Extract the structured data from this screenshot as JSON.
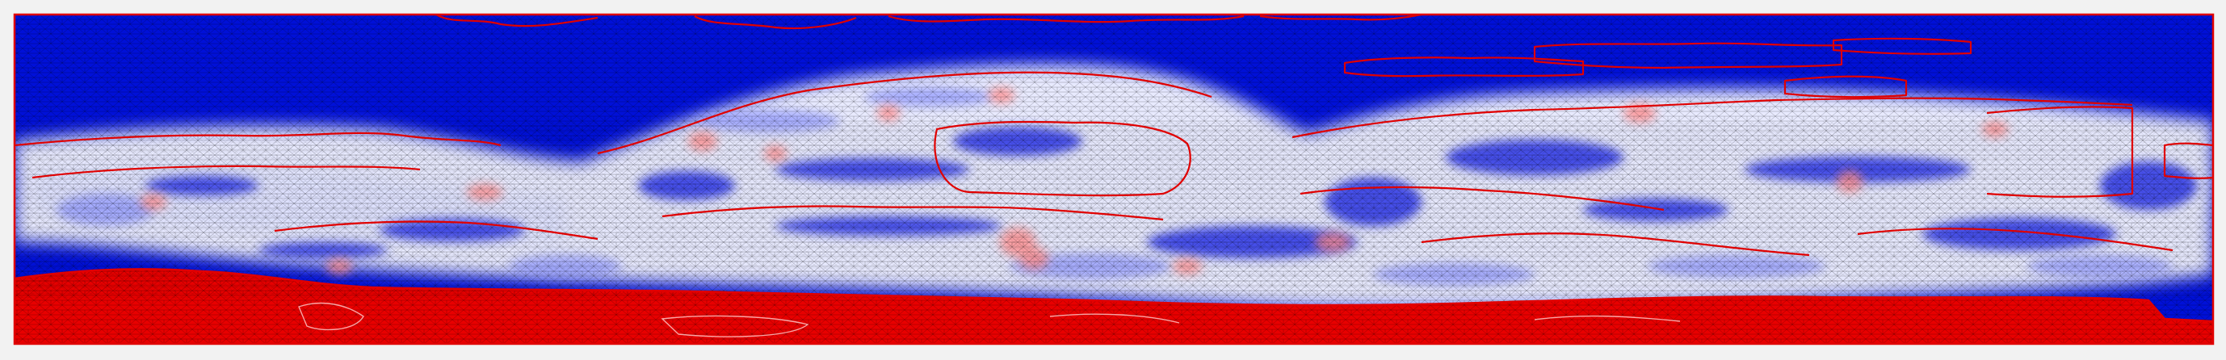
{
  "figure": {
    "colors": {
      "background": "#f2f2f2",
      "blue_phase": "#0010d8",
      "red_phase": "#e80000",
      "mixed_white": "#f4f4ff",
      "light_blue": "#8c94ff",
      "pink": "#ff9c9c",
      "interface_line": "#e00000",
      "mesh_line": "#000000"
    },
    "icons": {
      "mesh": "triangular-mesh",
      "interface": "phase-interface-contour"
    }
  }
}
